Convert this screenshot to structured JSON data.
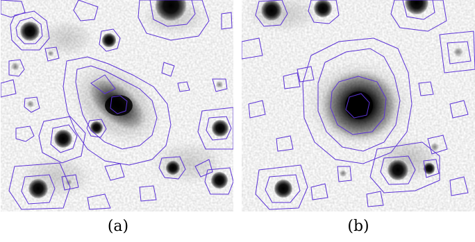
{
  "panels": [
    {
      "id": "a",
      "caption": "(a)",
      "contour_color": "#5b32d6"
    },
    {
      "id": "b",
      "caption": "(b)",
      "contour_color": "#5b32d6"
    }
  ]
}
